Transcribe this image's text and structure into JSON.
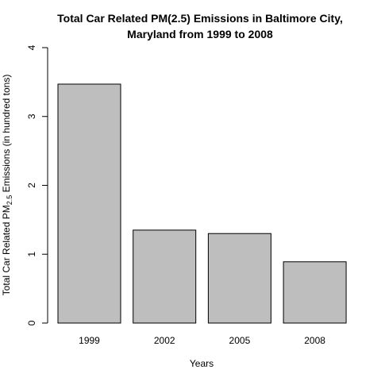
{
  "chart_data": {
    "type": "bar",
    "title_line1": "Total Car Related PM(2.5) Emissions in Baltimore City,",
    "title_line2": "Maryland from 1999 to 2008",
    "xlabel": "Years",
    "ylabel_main": "Total Car Related PM",
    "ylabel_sub": "2.5",
    "ylabel_rest": " Emissions (in hundred tons)",
    "categories": [
      "1999",
      "2002",
      "2005",
      "2008"
    ],
    "values": [
      3.47,
      1.35,
      1.3,
      0.89
    ],
    "ylim": [
      0,
      4
    ],
    "yticks": [
      "0",
      "1",
      "2",
      "3",
      "4"
    ],
    "grid": false,
    "legend": "none",
    "bar_color": "#bebebe",
    "bar_stroke": "#000000"
  }
}
